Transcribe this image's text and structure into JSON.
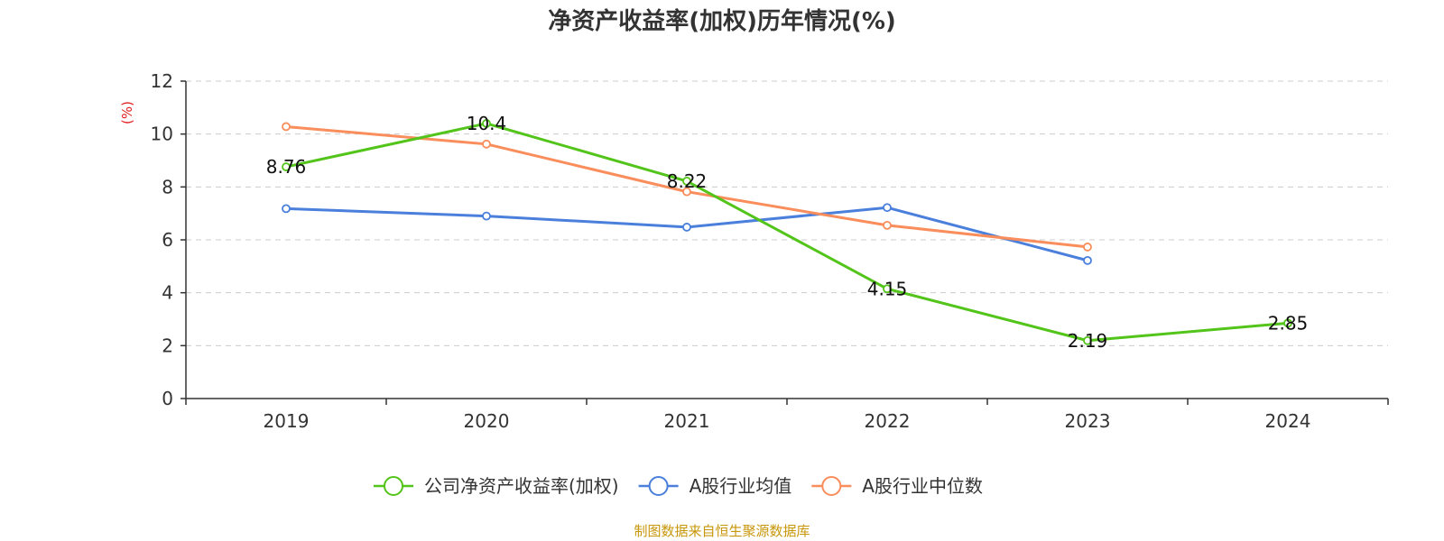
{
  "chart_data": {
    "type": "line",
    "title": "净资产收益率(加权)历年情况(%)",
    "ylabel": "(%)",
    "xlabel": "",
    "categories": [
      "2019",
      "2020",
      "2021",
      "2022",
      "2023",
      "2024"
    ],
    "ylim": [
      0,
      12
    ],
    "yticks": [
      0,
      2,
      4,
      6,
      8,
      10,
      12
    ],
    "grid": true,
    "legend_position": "bottom",
    "series": [
      {
        "name": "公司净资产收益率(加权)",
        "color": "#52c41a",
        "values": [
          8.76,
          10.4,
          8.22,
          4.15,
          2.19,
          2.85
        ],
        "labels": [
          "8.76",
          "10.4",
          "8.22",
          "4.15",
          "2.19",
          "2.85"
        ]
      },
      {
        "name": "A股行业均值",
        "color": "#4a7fdc",
        "values": [
          7.18,
          6.9,
          6.48,
          7.22,
          5.22,
          null
        ]
      },
      {
        "name": "A股行业中位数",
        "color": "#f98d5b",
        "values": [
          10.28,
          9.62,
          7.82,
          6.55,
          5.73,
          null
        ]
      }
    ],
    "source": "制图数据来自恒生聚源数据库",
    "colors": {
      "axis": "#333333",
      "grid": "#cccccc",
      "ylabel": "#e02020",
      "source": "#c8960a"
    }
  }
}
